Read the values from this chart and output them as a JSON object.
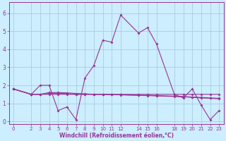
{
  "xlabel": "Windchill (Refroidissement éolien,°C)",
  "background_color": "#cceeff",
  "grid_color": "#aaccdd",
  "line_color": "#993399",
  "xlim": [
    -0.5,
    23.5
  ],
  "ylim": [
    -0.15,
    6.6
  ],
  "xticks": [
    0,
    2,
    3,
    4,
    5,
    6,
    7,
    8,
    9,
    10,
    11,
    12,
    14,
    15,
    16,
    18,
    19,
    20,
    21,
    22,
    23
  ],
  "yticks": [
    0,
    1,
    2,
    3,
    4,
    5,
    6
  ],
  "x_positions": [
    0,
    2,
    3,
    4,
    5,
    6,
    7,
    8,
    9,
    10,
    11,
    12,
    14,
    15,
    16,
    18,
    19,
    20,
    21,
    22,
    23
  ],
  "series0": [
    1.8,
    1.5,
    2.0,
    2.0,
    0.6,
    0.8,
    0.1,
    2.4,
    3.1,
    4.5,
    4.4,
    5.9,
    4.9,
    5.2,
    4.3,
    1.5,
    1.3,
    1.8,
    0.9,
    0.1,
    0.6
  ],
  "series1": [
    1.8,
    1.5,
    1.5,
    1.5,
    1.5,
    1.5,
    1.5,
    1.5,
    1.5,
    1.5,
    1.5,
    1.5,
    1.5,
    1.5,
    1.5,
    1.5,
    1.5,
    1.5,
    1.5,
    1.5,
    1.5
  ],
  "series2": [
    1.8,
    1.5,
    1.5,
    1.55,
    1.55,
    1.55,
    1.5,
    1.5,
    1.5,
    1.5,
    1.48,
    1.48,
    1.45,
    1.45,
    1.43,
    1.4,
    1.38,
    1.35,
    1.33,
    1.3,
    1.28
  ],
  "series3": [
    1.8,
    1.5,
    1.5,
    1.6,
    1.6,
    1.58,
    1.55,
    1.53,
    1.5,
    1.5,
    1.48,
    1.47,
    1.44,
    1.43,
    1.41,
    1.38,
    1.36,
    1.33,
    1.3,
    1.28,
    1.25
  ],
  "figsize": [
    3.2,
    2.0
  ],
  "dpi": 100
}
